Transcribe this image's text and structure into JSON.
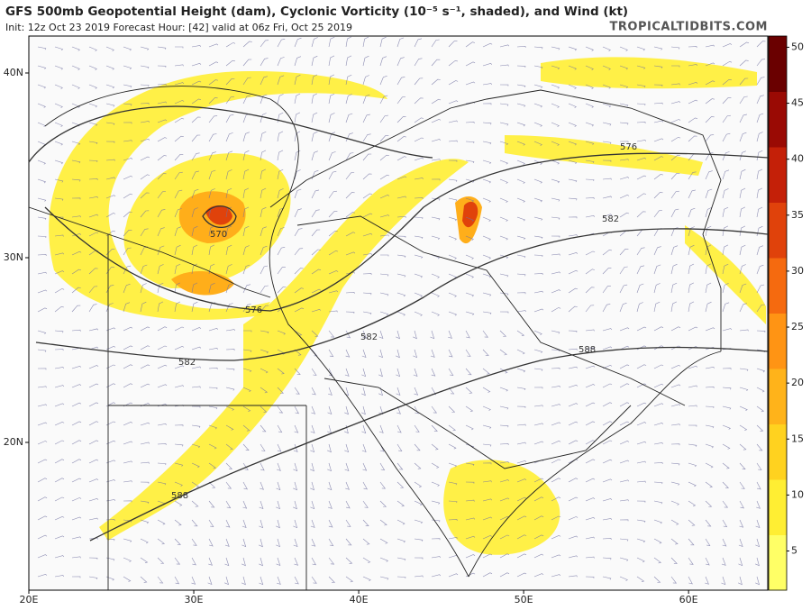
{
  "header": {
    "title": "GFS 500mb Geopotential Height (dam), Cyclonic Vorticity (10⁻⁵ s⁻¹, shaded), and Wind (kt)",
    "subtitle": "Init: 12z Oct 23 2019   Forecast Hour: [42]   valid at 06z Fri, Oct 25 2019",
    "site": "TROPICALTIDBITS.COM"
  },
  "map": {
    "lonlim": [
      20,
      64.8
    ],
    "latlim": [
      12,
      42
    ],
    "lon_ticks": [
      {
        "value": 20,
        "label": "20E"
      },
      {
        "value": 30,
        "label": "30E"
      },
      {
        "value": 40,
        "label": "40E"
      },
      {
        "value": 50,
        "label": "50E"
      },
      {
        "value": 60,
        "label": "60E"
      }
    ],
    "lat_ticks": [
      {
        "value": 20,
        "label": "20N"
      },
      {
        "value": 30,
        "label": "30N"
      },
      {
        "value": 40,
        "label": "40N"
      }
    ],
    "contour_labels": [
      "570",
      "576",
      "576",
      "582",
      "582",
      "582",
      "588",
      "588"
    ]
  },
  "colorbar": {
    "range": [
      1.5,
      51
    ],
    "ticks": [
      5,
      10,
      15,
      20,
      25,
      30,
      35,
      40,
      45,
      50
    ],
    "colors": [
      "#ffff66",
      "#ffee33",
      "#ffd21f",
      "#ffb31a",
      "#ff9414",
      "#f56a0f",
      "#e0420b",
      "#c42008",
      "#9a0a04",
      "#6a0000"
    ]
  }
}
